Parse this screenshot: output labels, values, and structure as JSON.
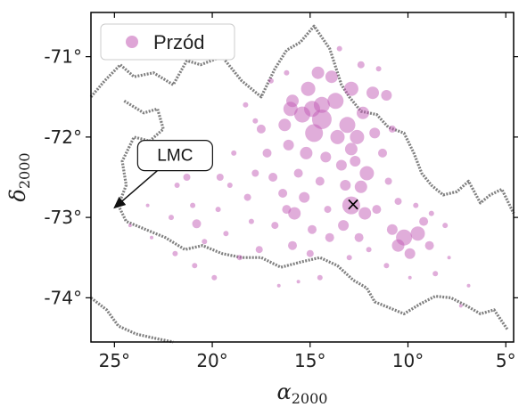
{
  "chart_data": {
    "type": "scatter",
    "title": "",
    "xlabel_main": "α",
    "xlabel_sub": "2000",
    "ylabel_main": "δ",
    "ylabel_sub": "2000",
    "xlim": [
      26.2,
      4.6
    ],
    "ylim": [
      -74.55,
      -70.45
    ],
    "x_ticks": [
      {
        "value": 25,
        "label": "25°"
      },
      {
        "value": 20,
        "label": "20°"
      },
      {
        "value": 15,
        "label": "15°"
      },
      {
        "value": 10,
        "label": "10°"
      },
      {
        "value": 5,
        "label": "5°"
      }
    ],
    "y_ticks": [
      {
        "value": -71,
        "label": "-71°"
      },
      {
        "value": -72,
        "label": "-72°"
      },
      {
        "value": -73,
        "label": "-73°"
      },
      {
        "value": -74,
        "label": "-74°"
      }
    ],
    "legend": {
      "location": "upper left",
      "entries": [
        "Przód"
      ]
    },
    "grid": false,
    "colors": {
      "points": "#c25bb5",
      "contour": "#555555",
      "marker": "#000000",
      "frame": "#000000"
    },
    "annotation": {
      "text": "LMC",
      "arrow_to": [
        25.0,
        -72.88
      ],
      "box_center": [
        21.9,
        -72.23
      ]
    },
    "marker": {
      "symbol": "×",
      "x": 12.8,
      "y": -72.85
    },
    "contour_line": [
      [
        26.2,
        -71.5
      ],
      [
        25.5,
        -71.3
      ],
      [
        24.7,
        -71.1
      ],
      [
        24.0,
        -71.25
      ],
      [
        23.0,
        -71.2
      ],
      [
        22.0,
        -71.35
      ],
      [
        21.3,
        -71.05
      ],
      [
        20.6,
        -71.1
      ],
      [
        19.5,
        -71.0
      ],
      [
        18.5,
        -71.3
      ],
      [
        17.5,
        -71.5
      ],
      [
        16.8,
        -71.15
      ],
      [
        16.2,
        -70.92
      ],
      [
        15.5,
        -70.82
      ],
      [
        14.8,
        -70.62
      ],
      [
        14.0,
        -70.9
      ],
      [
        13.4,
        -71.35
      ],
      [
        13.0,
        -71.5
      ],
      [
        12.4,
        -71.68
      ],
      [
        11.6,
        -71.72
      ],
      [
        11.0,
        -71.88
      ],
      [
        10.2,
        -71.95
      ],
      [
        9.7,
        -72.2
      ],
      [
        9.3,
        -72.45
      ],
      [
        8.8,
        -72.6
      ],
      [
        8.2,
        -72.72
      ],
      [
        7.5,
        -72.68
      ],
      [
        6.9,
        -72.55
      ],
      [
        6.3,
        -72.82
      ],
      [
        5.8,
        -72.72
      ],
      [
        5.2,
        -72.65
      ],
      [
        4.6,
        -72.95
      ]
    ],
    "contour_line_2": [
      [
        24.5,
        -71.55
      ],
      [
        23.5,
        -71.7
      ],
      [
        22.8,
        -71.65
      ],
      [
        22.5,
        -71.9
      ],
      [
        23.2,
        -72.05
      ],
      [
        24.0,
        -72.0
      ],
      [
        24.6,
        -72.3
      ],
      [
        24.4,
        -72.6
      ],
      [
        24.8,
        -72.85
      ],
      [
        24.4,
        -73.05
      ],
      [
        23.4,
        -73.15
      ],
      [
        22.4,
        -73.25
      ],
      [
        21.4,
        -73.4
      ],
      [
        20.5,
        -73.35
      ],
      [
        19.5,
        -73.45
      ],
      [
        18.5,
        -73.5
      ],
      [
        17.5,
        -73.5
      ],
      [
        16.5,
        -73.62
      ],
      [
        15.4,
        -73.55
      ],
      [
        14.5,
        -73.5
      ],
      [
        13.6,
        -73.6
      ],
      [
        12.8,
        -73.78
      ],
      [
        12.1,
        -73.88
      ],
      [
        11.7,
        -74.05
      ],
      [
        11.0,
        -74.12
      ],
      [
        10.2,
        -74.2
      ],
      [
        9.4,
        -74.08
      ],
      [
        8.6,
        -73.98
      ],
      [
        7.8,
        -74.0
      ],
      [
        7.0,
        -74.1
      ],
      [
        6.3,
        -74.2
      ],
      [
        5.6,
        -74.15
      ],
      [
        4.9,
        -74.4
      ]
    ],
    "contour_line_3": [
      [
        26.2,
        -74.0
      ],
      [
        25.4,
        -74.15
      ],
      [
        24.8,
        -74.35
      ],
      [
        23.9,
        -74.45
      ],
      [
        23.0,
        -74.5
      ],
      [
        22.0,
        -74.55
      ]
    ],
    "series": [
      {
        "name": "Przód",
        "points": [
          {
            "x": 15.4,
            "y": -71.72,
            "s": 9
          },
          {
            "x": 14.4,
            "y": -71.78,
            "s": 11
          },
          {
            "x": 14.8,
            "y": -71.95,
            "s": 10
          },
          {
            "x": 13.7,
            "y": -71.55,
            "s": 9
          },
          {
            "x": 12.9,
            "y": -71.4,
            "s": 8
          },
          {
            "x": 13.1,
            "y": -71.85,
            "s": 9
          },
          {
            "x": 12.6,
            "y": -72.0,
            "s": 8
          },
          {
            "x": 12.3,
            "y": -71.7,
            "s": 7
          },
          {
            "x": 11.8,
            "y": -71.45,
            "s": 7
          },
          {
            "x": 11.1,
            "y": -71.48,
            "s": 6
          },
          {
            "x": 13.9,
            "y": -71.25,
            "s": 7
          },
          {
            "x": 14.6,
            "y": -71.2,
            "s": 7
          },
          {
            "x": 15.1,
            "y": -71.4,
            "s": 8
          },
          {
            "x": 15.9,
            "y": -71.55,
            "s": 7
          },
          {
            "x": 16.3,
            "y": -71.85,
            "s": 7
          },
          {
            "x": 16.1,
            "y": -72.1,
            "s": 6
          },
          {
            "x": 15.2,
            "y": -72.2,
            "s": 7
          },
          {
            "x": 14.2,
            "y": -72.25,
            "s": 6
          },
          {
            "x": 13.4,
            "y": -72.35,
            "s": 6
          },
          {
            "x": 12.7,
            "y": -72.3,
            "s": 6
          },
          {
            "x": 12.1,
            "y": -72.45,
            "s": 8
          },
          {
            "x": 12.4,
            "y": -72.62,
            "s": 7
          },
          {
            "x": 12.9,
            "y": -72.85,
            "s": 10
          },
          {
            "x": 12.2,
            "y": -72.95,
            "s": 7
          },
          {
            "x": 13.3,
            "y": -73.1,
            "s": 6
          },
          {
            "x": 10.2,
            "y": -73.25,
            "s": 9
          },
          {
            "x": 9.5,
            "y": -73.2,
            "s": 8
          },
          {
            "x": 10.8,
            "y": -73.15,
            "s": 6
          },
          {
            "x": 9.9,
            "y": -73.45,
            "s": 6
          },
          {
            "x": 8.9,
            "y": -73.35,
            "s": 5
          },
          {
            "x": 15.8,
            "y": -72.95,
            "s": 7
          },
          {
            "x": 15.3,
            "y": -72.75,
            "s": 6
          },
          {
            "x": 16.4,
            "y": -72.7,
            "s": 5
          },
          {
            "x": 14.9,
            "y": -73.15,
            "s": 5
          },
          {
            "x": 15.9,
            "y": -73.35,
            "s": 5
          },
          {
            "x": 14.0,
            "y": -73.25,
            "s": 5
          },
          {
            "x": 14.5,
            "y": -72.55,
            "s": 5
          },
          {
            "x": 17.5,
            "y": -71.9,
            "s": 5
          },
          {
            "x": 17.2,
            "y": -72.2,
            "s": 5
          },
          {
            "x": 17.8,
            "y": -72.45,
            "s": 4
          },
          {
            "x": 16.9,
            "y": -72.5,
            "s": 5
          },
          {
            "x": 18.2,
            "y": -72.75,
            "s": 4
          },
          {
            "x": 19.6,
            "y": -72.5,
            "s": 4
          },
          {
            "x": 20.3,
            "y": -72.3,
            "s": 3
          },
          {
            "x": 21.3,
            "y": -72.5,
            "s": 4
          },
          {
            "x": 21.8,
            "y": -72.6,
            "s": 3
          },
          {
            "x": 20.8,
            "y": -73.08,
            "s": 5
          },
          {
            "x": 20.4,
            "y": -73.3,
            "s": 3
          },
          {
            "x": 19.3,
            "y": -73.2,
            "s": 3
          },
          {
            "x": 18.6,
            "y": -73.5,
            "s": 3
          },
          {
            "x": 17.6,
            "y": -73.4,
            "s": 4
          },
          {
            "x": 16.8,
            "y": -73.1,
            "s": 4
          },
          {
            "x": 18.0,
            "y": -73.05,
            "s": 3
          },
          {
            "x": 19.9,
            "y": -73.75,
            "s": 3
          },
          {
            "x": 20.9,
            "y": -73.6,
            "s": 3
          },
          {
            "x": 21.9,
            "y": -73.45,
            "s": 3
          },
          {
            "x": 23.1,
            "y": -73.25,
            "s": 2
          },
          {
            "x": 24.2,
            "y": -73.1,
            "s": 2
          },
          {
            "x": 19.7,
            "y": -72.9,
            "s": 3
          },
          {
            "x": 18.9,
            "y": -72.2,
            "s": 3
          },
          {
            "x": 18.3,
            "y": -71.6,
            "s": 3
          },
          {
            "x": 17.0,
            "y": -71.3,
            "s": 3
          },
          {
            "x": 13.5,
            "y": -70.9,
            "s": 3
          },
          {
            "x": 12.4,
            "y": -71.1,
            "s": 4
          },
          {
            "x": 11.5,
            "y": -71.15,
            "s": 3
          },
          {
            "x": 10.8,
            "y": -71.9,
            "s": 4
          },
          {
            "x": 11.3,
            "y": -72.2,
            "s": 5
          },
          {
            "x": 11.0,
            "y": -72.55,
            "s": 4
          },
          {
            "x": 10.5,
            "y": -72.8,
            "s": 4
          },
          {
            "x": 9.6,
            "y": -72.85,
            "s": 3
          },
          {
            "x": 8.8,
            "y": -72.95,
            "s": 3
          },
          {
            "x": 8.1,
            "y": -73.1,
            "s": 3
          },
          {
            "x": 7.9,
            "y": -73.5,
            "s": 2
          },
          {
            "x": 8.6,
            "y": -73.7,
            "s": 3
          },
          {
            "x": 9.9,
            "y": -73.75,
            "s": 2
          },
          {
            "x": 11.1,
            "y": -73.6,
            "s": 3
          },
          {
            "x": 12.0,
            "y": -73.4,
            "s": 3
          },
          {
            "x": 13.0,
            "y": -73.5,
            "s": 3
          },
          {
            "x": 14.5,
            "y": -73.75,
            "s": 3
          },
          {
            "x": 15.6,
            "y": -73.8,
            "s": 2
          },
          {
            "x": 16.6,
            "y": -73.85,
            "s": 2
          },
          {
            "x": 6.9,
            "y": -73.85,
            "s": 2
          },
          {
            "x": 7.3,
            "y": -74.1,
            "s": 2
          },
          {
            "x": 22.5,
            "y": -72.2,
            "s": 2
          },
          {
            "x": 23.3,
            "y": -72.85,
            "s": 2
          },
          {
            "x": 22.1,
            "y": -73.0,
            "s": 3
          },
          {
            "x": 21.0,
            "y": -72.85,
            "s": 3
          },
          {
            "x": 19.1,
            "y": -72.6,
            "s": 3
          },
          {
            "x": 17.8,
            "y": -71.8,
            "s": 3
          },
          {
            "x": 16.2,
            "y": -71.2,
            "s": 3
          },
          {
            "x": 14.4,
            "y": -71.6,
            "s": 9
          },
          {
            "x": 13.6,
            "y": -72.0,
            "s": 8
          },
          {
            "x": 14.9,
            "y": -71.65,
            "s": 9
          },
          {
            "x": 13.2,
            "y": -72.6,
            "s": 6
          },
          {
            "x": 11.6,
            "y": -72.9,
            "s": 5
          },
          {
            "x": 15.6,
            "y": -72.45,
            "s": 5
          },
          {
            "x": 16.0,
            "y": -71.65,
            "s": 8
          },
          {
            "x": 11.7,
            "y": -71.95,
            "s": 6
          },
          {
            "x": 12.9,
            "y": -72.15,
            "s": 7
          },
          {
            "x": 10.5,
            "y": -73.35,
            "s": 7
          },
          {
            "x": 9.2,
            "y": -73.05,
            "s": 5
          },
          {
            "x": 12.5,
            "y": -73.25,
            "s": 5
          },
          {
            "x": 15.0,
            "y": -73.45,
            "s": 4
          },
          {
            "x": 16.2,
            "y": -72.9,
            "s": 5
          },
          {
            "x": 14.1,
            "y": -72.9,
            "s": 4
          }
        ]
      }
    ]
  }
}
